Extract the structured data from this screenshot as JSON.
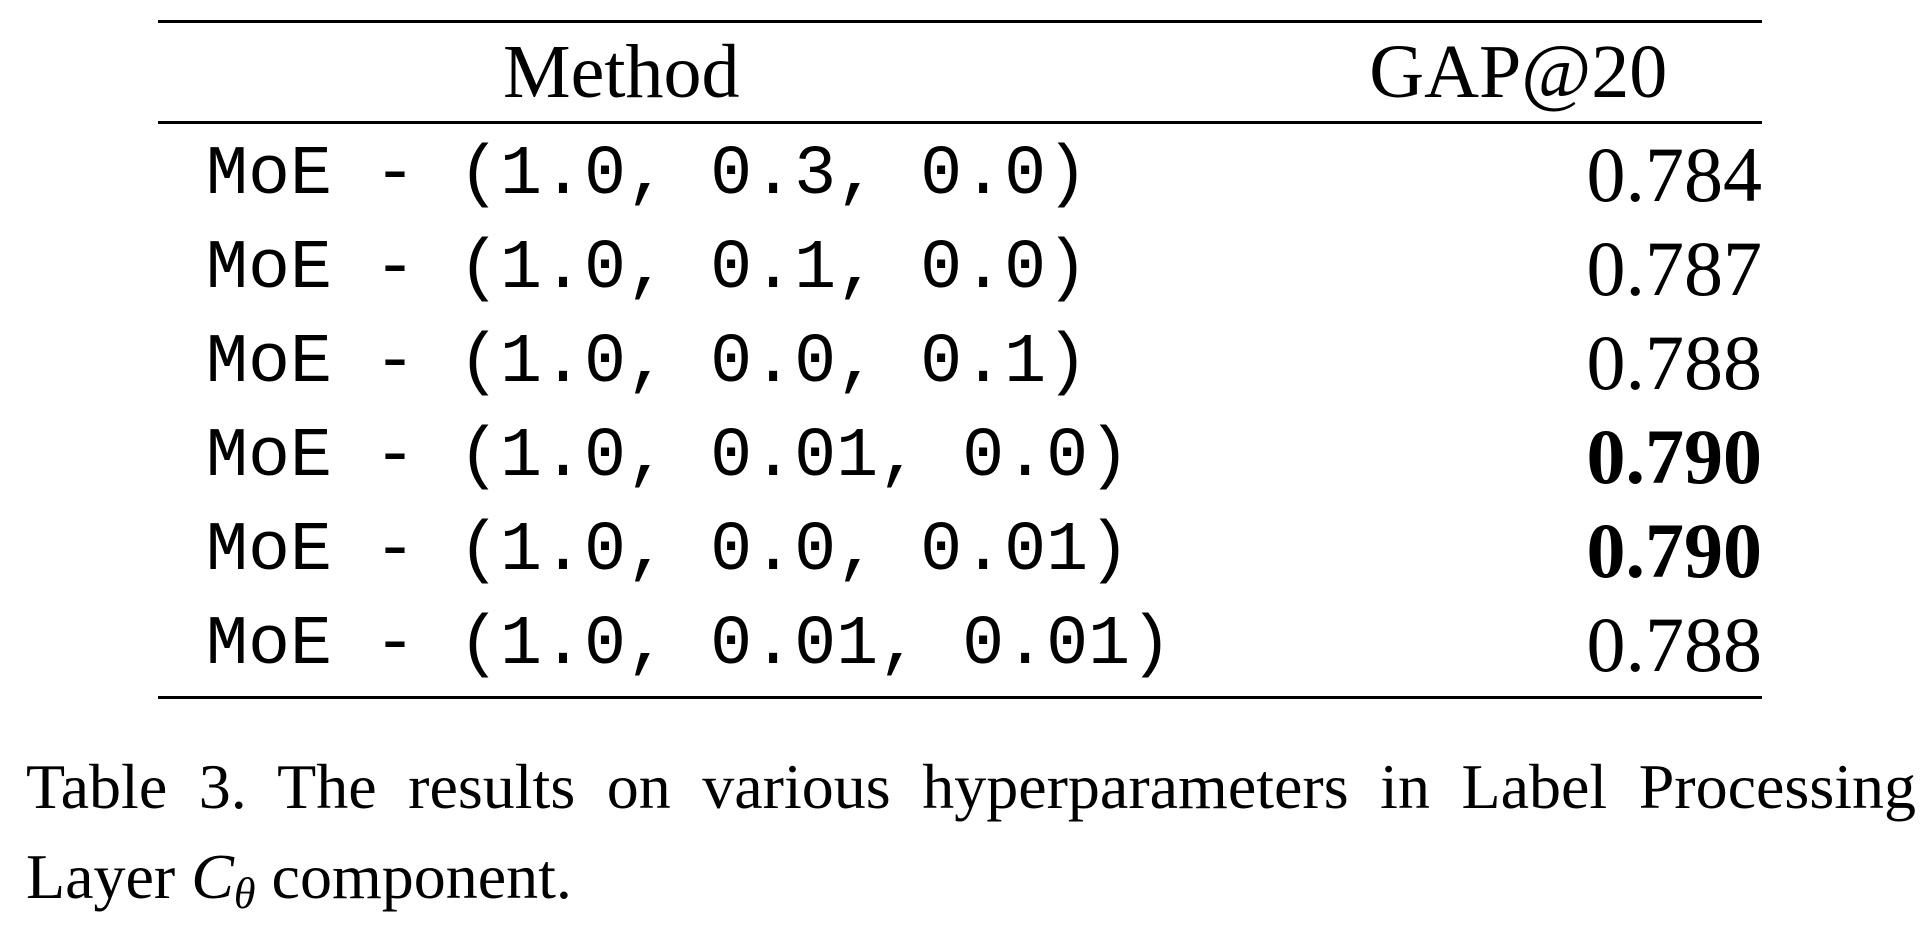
{
  "table": {
    "headers": {
      "method": "Method",
      "metric": "GAP@20"
    },
    "rows": [
      {
        "method": "MoE - (1.0, 0.3, 0.0)",
        "gap": "0.784",
        "bold": false
      },
      {
        "method": "MoE - (1.0, 0.1, 0.0)",
        "gap": "0.787",
        "bold": false
      },
      {
        "method": "MoE - (1.0, 0.0, 0.1)",
        "gap": "0.788",
        "bold": false
      },
      {
        "method": "MoE - (1.0, 0.01, 0.0)",
        "gap": "0.790",
        "bold": true
      },
      {
        "method": "MoE - (1.0, 0.0, 0.01)",
        "gap": "0.790",
        "bold": true
      },
      {
        "method": "MoE - (1.0, 0.01, 0.01)",
        "gap": "0.788",
        "bold": false
      }
    ]
  },
  "caption": {
    "prefix": "Table 3. The results on various hyperparameters in Label Process­ing Layer ",
    "symbol": "C",
    "symbol_sub": "θ",
    "suffix": " component."
  }
}
